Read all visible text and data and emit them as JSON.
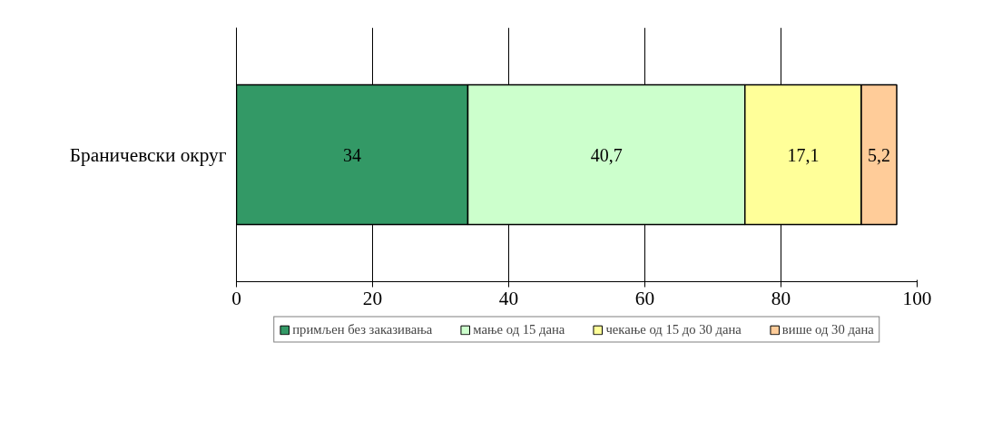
{
  "chart_data": {
    "type": "bar",
    "orientation": "horizontal",
    "stacked": true,
    "categories": [
      "Браничевски округ"
    ],
    "series": [
      {
        "name": "примљен без заказивања",
        "color": "#339966",
        "values": [
          34
        ],
        "value_labels": [
          "34"
        ]
      },
      {
        "name": "мање од 15 дана",
        "color": "#ccffcc",
        "values": [
          40.7
        ],
        "value_labels": [
          "40,7"
        ]
      },
      {
        "name": "чекање од 15 до 30 дана",
        "color": "#ffff99",
        "values": [
          17.1
        ],
        "value_labels": [
          "17,1"
        ]
      },
      {
        "name": "више од 30 дана",
        "color": "#ffcc99",
        "values": [
          5.2
        ],
        "value_labels": [
          "5,2"
        ]
      }
    ],
    "xlim": [
      0,
      100
    ],
    "xticks": [
      0,
      20,
      40,
      60,
      80,
      100
    ],
    "grid": "x",
    "legend": "bottom"
  }
}
